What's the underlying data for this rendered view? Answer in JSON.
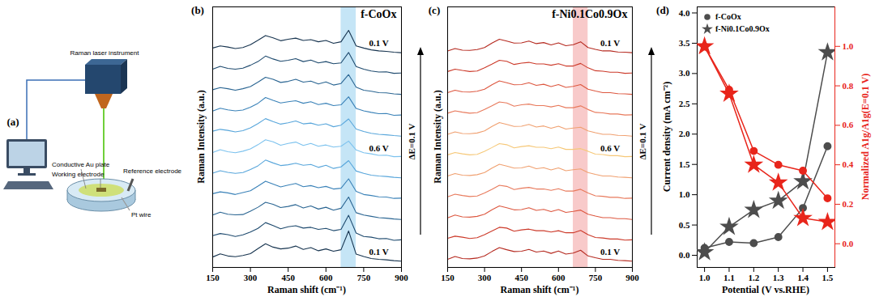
{
  "diagram": {
    "panel_label": "(a)",
    "labels": {
      "instrument": "Raman laser instrument",
      "reference": "Reference electrode",
      "plate": "Conductive Au plate",
      "working": "Working electrode",
      "wire": "Pt wire"
    }
  },
  "chart_data": [
    {
      "type": "line",
      "panel_label": "(b)",
      "title": "f-CoOx",
      "xlabel": "Raman shift (cm⁻¹)",
      "ylabel": "Raman Intensity (a.u.)",
      "arrow_label": "ΔE=0.1 V",
      "x": [
        150,
        180,
        210,
        240,
        270,
        300,
        330,
        360,
        390,
        420,
        450,
        480,
        510,
        540,
        570,
        600,
        630,
        660,
        690,
        720,
        750,
        780,
        810,
        840,
        870,
        900
      ],
      "xlim": [
        150,
        900
      ],
      "xticks": [
        150,
        300,
        450,
        600,
        750,
        900
      ],
      "ylim": [
        0,
        100
      ],
      "tick_labels": "x",
      "highlight": {
        "x": [
          660,
          720
        ],
        "color": "#9fd3f0"
      },
      "annotations": [
        {
          "text": "0.1 V",
          "series": 0
        },
        {
          "text": "0.6 V",
          "series": 5
        },
        {
          "text": "0.1 V",
          "series": 10
        }
      ],
      "series": [
        {
          "color": "#17344f",
          "values": [
            4,
            5.2,
            4.4,
            4.1,
            4.6,
            5.3,
            7.2,
            9.1,
            7.8,
            7.1,
            7.4,
            8.2,
            6.9,
            7.6,
            6.4,
            7.1,
            6.2,
            6.8,
            14,
            5.1,
            4.2,
            3.4,
            3.1,
            2.9,
            2.6,
            2.4
          ]
        },
        {
          "color": "#1e4a6e",
          "values": [
            12.2,
            13,
            12.6,
            11.9,
            12.5,
            13.6,
            15,
            17.2,
            16.1,
            14.8,
            15.6,
            16,
            15.1,
            15.4,
            14.6,
            15,
            14.1,
            14.6,
            20,
            13.2,
            11.9,
            11.6,
            11,
            11.1,
            10.4,
            10.6
          ]
        },
        {
          "color": "#2a6592",
          "values": [
            20.1,
            21.2,
            20.4,
            20.2,
            20.3,
            21.6,
            23.1,
            25,
            24.2,
            23,
            23.4,
            24.1,
            22.8,
            23.6,
            22.4,
            23.1,
            22,
            22.7,
            27,
            21,
            20.1,
            19.6,
            19.1,
            18.9,
            18.6,
            18.4
          ]
        },
        {
          "color": "#3a82b8",
          "values": [
            28.3,
            29,
            28.6,
            28,
            28.7,
            29.4,
            31.2,
            33.1,
            32,
            30.9,
            31.6,
            32.2,
            31,
            31.4,
            30.6,
            31.1,
            30.1,
            30.4,
            34,
            29.2,
            28,
            27.6,
            27.1,
            27,
            26.5,
            26.6
          ]
        },
        {
          "color": "#58a6db",
          "values": [
            36.2,
            37.1,
            36.5,
            36.1,
            36.4,
            37.6,
            39,
            41.2,
            40.1,
            39.1,
            39.4,
            40,
            39.2,
            39.5,
            38.4,
            39.2,
            38,
            38.6,
            41,
            37,
            36.1,
            35.4,
            35.1,
            34.9,
            34.6,
            34.4
          ]
        },
        {
          "color": "#7cc2ee",
          "values": [
            44.1,
            45.2,
            44.4,
            44,
            44.6,
            45.5,
            47.1,
            49,
            48.2,
            46.9,
            47.6,
            48.1,
            46.8,
            47.6,
            46.5,
            47,
            46.2,
            46.5,
            48.5,
            45.1,
            44,
            43.6,
            43,
            43.1,
            42.5,
            42.6
          ]
        },
        {
          "color": "#58a6db",
          "values": [
            52.3,
            53,
            52.6,
            52,
            52.5,
            53.6,
            55.2,
            57.1,
            56,
            55,
            55.5,
            56.2,
            55.1,
            55.4,
            54.6,
            55.1,
            54,
            54.6,
            57,
            53.1,
            52.2,
            51.5,
            51.1,
            50.9,
            50.6,
            50.4
          ]
        },
        {
          "color": "#3a82b8",
          "values": [
            60,
            61.1,
            60.5,
            60.1,
            60.4,
            61.5,
            63,
            65.2,
            64.1,
            63.1,
            63.6,
            64,
            63,
            63.6,
            62.5,
            63,
            62.1,
            62.4,
            65.5,
            61,
            60.1,
            59.5,
            59,
            59.1,
            58.4,
            58.5
          ]
        },
        {
          "color": "#2a6592",
          "values": [
            68.2,
            69,
            68.6,
            68,
            68.6,
            69.4,
            71.1,
            73,
            72.2,
            71,
            71.4,
            72.2,
            71.1,
            71.5,
            70.4,
            71.2,
            70,
            70.6,
            74,
            69.2,
            68,
            67.6,
            67.1,
            67,
            66.6,
            66.4
          ]
        },
        {
          "color": "#1e4a6e",
          "values": [
            76.1,
            77.2,
            76.4,
            76.1,
            76.5,
            77.6,
            79,
            81.1,
            80,
            79.1,
            79.5,
            80.1,
            79,
            79.6,
            78.5,
            79,
            78.2,
            78.5,
            82.5,
            77.1,
            76.1,
            75.4,
            75,
            75.1,
            74.5,
            74.6
          ]
        },
        {
          "color": "#17344f",
          "values": [
            84.2,
            85,
            84.6,
            84,
            84.4,
            85.5,
            87.2,
            89,
            88.1,
            87,
            87.6,
            88,
            87.1,
            87.4,
            86.6,
            87.1,
            86,
            86.6,
            91,
            85,
            84.2,
            83.5,
            83.1,
            82.9,
            82.6,
            82.4
          ]
        }
      ]
    },
    {
      "type": "line",
      "panel_label": "(c)",
      "title": "f-Ni0.1Co0.9Ox",
      "xlabel": "Raman shift (cm⁻¹)",
      "ylabel": "Raman Intensity (a.u.)",
      "arrow_label": "ΔE=0.1 V",
      "x": [
        150,
        180,
        210,
        240,
        270,
        300,
        330,
        360,
        390,
        420,
        450,
        480,
        510,
        540,
        570,
        600,
        630,
        660,
        690,
        720,
        750,
        780,
        810,
        840,
        870,
        900
      ],
      "xlim": [
        150,
        900
      ],
      "xticks": [
        150,
        300,
        450,
        600,
        750,
        900
      ],
      "ylim": [
        0,
        100
      ],
      "tick_labels": "x",
      "highlight": {
        "x": [
          660,
          720
        ],
        "color": "#f4a6a6"
      },
      "annotations": [
        {
          "text": "0.1 V",
          "series": 0
        },
        {
          "text": "0.6 V",
          "series": 5
        },
        {
          "text": "0.1 V",
          "series": 10
        }
      ],
      "series": [
        {
          "color": "#b5291f",
          "values": [
            3.1,
            4.2,
            3.4,
            3.3,
            3.6,
            4.4,
            6.1,
            7.6,
            6.8,
            6.1,
            6.2,
            6.9,
            5.9,
            6.3,
            5.4,
            6.3,
            5.1,
            5.5,
            6.6,
            4.4,
            3.7,
            3.1,
            3.1,
            2.7,
            2.6,
            2.4
          ]
        },
        {
          "color": "#cc3a2a",
          "values": [
            11.2,
            12,
            11.6,
            11.1,
            11.4,
            12.6,
            14,
            15.4,
            15.1,
            13.9,
            14.4,
            14.7,
            14.1,
            14.1,
            13.6,
            14.1,
            13.3,
            13.3,
            14.2,
            12.6,
            11.5,
            11.3,
            10.9,
            10.9,
            10.5,
            10.6
          ]
        },
        {
          "color": "#dd5840",
          "values": [
            19,
            20.1,
            19.4,
            19.3,
            19.6,
            20.4,
            22.1,
            23.6,
            22.9,
            22.1,
            22.2,
            22.9,
            21.9,
            22.3,
            21.4,
            22.2,
            21.1,
            21.5,
            22,
            20.4,
            19.7,
            19.1,
            19.1,
            18.7,
            18.7,
            18.4
          ]
        },
        {
          "color": "#e87a5c",
          "values": [
            27.1,
            28.1,
            27.6,
            27.2,
            27.4,
            28.6,
            30,
            31.5,
            31.1,
            29.9,
            30.4,
            30.7,
            30.1,
            30.1,
            29.6,
            30.2,
            29.3,
            29.3,
            30,
            28.6,
            27.5,
            27.3,
            26.9,
            26.9,
            26.5,
            26.6
          ]
        },
        {
          "color": "#f0a070",
          "values": [
            35.1,
            36,
            35.4,
            35.3,
            35.6,
            36.4,
            38.1,
            39.6,
            38.9,
            38.1,
            38.2,
            38.9,
            37.9,
            38.3,
            37.4,
            38.2,
            37.1,
            37.5,
            37.8,
            36.4,
            35.7,
            35.1,
            35.1,
            34.7,
            34.6,
            34.4
          ]
        },
        {
          "color": "#f6c878",
          "values": [
            43.2,
            44.1,
            43.6,
            43.2,
            43.4,
            44.6,
            46,
            47.5,
            47.1,
            45.9,
            46.4,
            46.7,
            46.1,
            46.1,
            45.6,
            46.2,
            45.3,
            45.3,
            45.6,
            44.6,
            43.5,
            43.3,
            42.9,
            42.9,
            42.5,
            42.6
          ]
        },
        {
          "color": "#f0a070",
          "values": [
            51.1,
            52,
            51.4,
            51.3,
            51.6,
            52.4,
            54.1,
            55.6,
            54.9,
            54.1,
            54.2,
            54.9,
            53.9,
            54.3,
            53.4,
            54.2,
            53.1,
            53.5,
            53.8,
            52.4,
            51.7,
            51.1,
            51.1,
            50.7,
            50.6,
            50.4
          ]
        },
        {
          "color": "#e87a5c",
          "values": [
            59.2,
            60.1,
            59.6,
            59.2,
            59.4,
            60.6,
            62,
            63.5,
            63.1,
            61.9,
            62.4,
            62.7,
            62.1,
            62.1,
            61.6,
            62.2,
            61.3,
            61.3,
            62,
            60.6,
            59.5,
            59.3,
            58.9,
            58.9,
            58.5,
            58.6
          ]
        },
        {
          "color": "#dd5840",
          "values": [
            67.1,
            68,
            67.4,
            67.3,
            67.6,
            68.4,
            70.1,
            71.6,
            70.9,
            70.1,
            70.2,
            70.9,
            69.9,
            70.3,
            69.4,
            70.2,
            69.1,
            69.5,
            70.2,
            68.4,
            67.7,
            67.1,
            67.1,
            66.7,
            66.6,
            66.4
          ]
        },
        {
          "color": "#cc3a2a",
          "values": [
            75.2,
            76.1,
            75.6,
            75.2,
            75.4,
            76.6,
            78,
            79.5,
            79.1,
            77.9,
            78.4,
            78.7,
            78.1,
            78.1,
            77.6,
            78.2,
            77.3,
            77.3,
            78.3,
            76.6,
            75.5,
            75.3,
            74.9,
            74.9,
            74.5,
            74.6
          ]
        },
        {
          "color": "#b5291f",
          "values": [
            83.1,
            84,
            83.4,
            83.3,
            83.6,
            84.4,
            86.1,
            87.6,
            86.9,
            86.1,
            86.2,
            86.9,
            85.9,
            86.3,
            85.4,
            86.2,
            85.1,
            85.5,
            86.6,
            84.4,
            83.7,
            83.1,
            83.1,
            82.7,
            82.6,
            82.4
          ]
        }
      ]
    },
    {
      "type": "line",
      "panel_label": "(d)",
      "xlabel": "Potential (V vs.RHE)",
      "ylabel": "Current density (mA cm⁻²)",
      "y2label": "Normalized A1g/A1g(E=0.1 V)",
      "x": [
        1.0,
        1.1,
        1.2,
        1.3,
        1.4,
        1.5
      ],
      "xlim": [
        0.97,
        1.53
      ],
      "xticks": [
        {
          "value": 1,
          "label": "1.0"
        },
        1.1,
        1.2,
        1.3,
        1.4,
        1.5
      ],
      "ylim": [
        -0.2,
        4.1
      ],
      "yticks": [
        {
          "value": 0,
          "label": "0.0"
        },
        0.5,
        {
          "value": 1,
          "label": "1.0"
        },
        1.5,
        {
          "value": 2,
          "label": "2.0"
        },
        2.5,
        {
          "value": 3,
          "label": "3.0"
        },
        3.5,
        {
          "value": 4,
          "label": "4.0"
        }
      ],
      "y2lim": [
        -0.12,
        1.2
      ],
      "y2ticks": [
        {
          "value": 0,
          "label": "0.0"
        },
        0.2,
        0.4,
        0.6,
        0.8,
        {
          "value": 1,
          "label": "1.0"
        }
      ],
      "legend": "top-left",
      "series": [
        {
          "name": "f-CoOx",
          "color": "#4d4d4d",
          "marker": "circle",
          "values": [
            0.12,
            0.22,
            0.2,
            0.3,
            0.78,
            1.8
          ]
        },
        {
          "name": "f-Ni0.1Co0.9Ox",
          "color": "#4d4d4d",
          "marker": "star",
          "values": [
            0.05,
            0.47,
            0.75,
            0.9,
            1.22,
            3.35
          ]
        },
        {
          "name": "f-CoOx",
          "color": "#e8251b",
          "marker": "circle",
          "axis": "y2",
          "values": [
            1.0,
            0.78,
            0.47,
            0.4,
            0.37,
            0.23
          ]
        },
        {
          "name": "f-Ni0.1Co0.9Ox",
          "color": "#e8251b",
          "marker": "star",
          "axis": "y2",
          "values": [
            1.0,
            0.76,
            0.4,
            0.31,
            0.13,
            0.11
          ]
        }
      ]
    }
  ]
}
